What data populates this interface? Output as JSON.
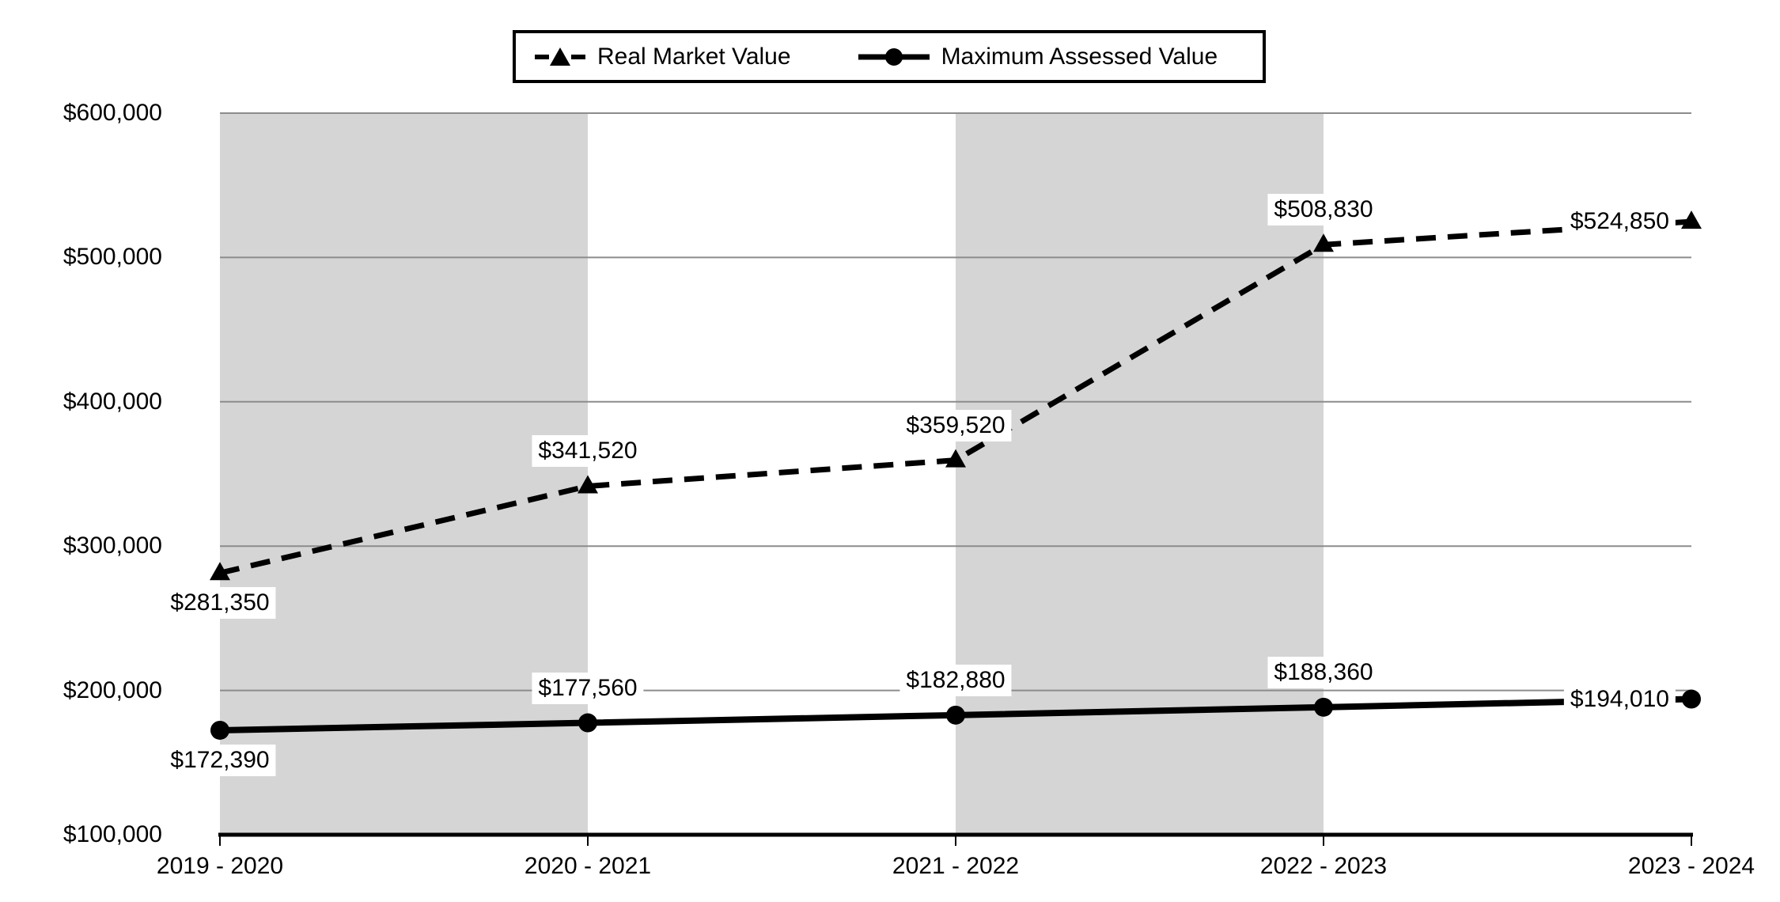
{
  "chart_data": {
    "type": "line",
    "categories": [
      "2019 - 2020",
      "2020 - 2021",
      "2021 - 2022",
      "2022 - 2023",
      "2023 - 2024"
    ],
    "series": [
      {
        "name": "Real Market Value",
        "values": [
          281350,
          341520,
          359520,
          508830,
          524850
        ],
        "line_style": "dashed",
        "marker": "triangle",
        "label_positions": [
          "below",
          "above",
          "above",
          "above",
          "left"
        ]
      },
      {
        "name": "Maximum Assessed Value",
        "values": [
          172390,
          177560,
          182880,
          188360,
          194010
        ],
        "line_style": "solid",
        "marker": "circle",
        "label_positions": [
          "below",
          "above",
          "above",
          "above",
          "left"
        ]
      }
    ],
    "title": "",
    "xlabel": "",
    "ylabel": "",
    "ylim": [
      100000,
      600000
    ],
    "ytick_step": 100000,
    "value_prefix": "$",
    "legend_position": "top-center",
    "grid": "horizontal",
    "plot_bands": "alternating-gray-starting-first-interval",
    "data_labels_on": true
  },
  "colors": {
    "series": "#000000",
    "band": "#d5d5d5",
    "gridline": "#8c8c8c",
    "axis": "#000000",
    "text": "#000000",
    "label_background": "#ffffff"
  }
}
